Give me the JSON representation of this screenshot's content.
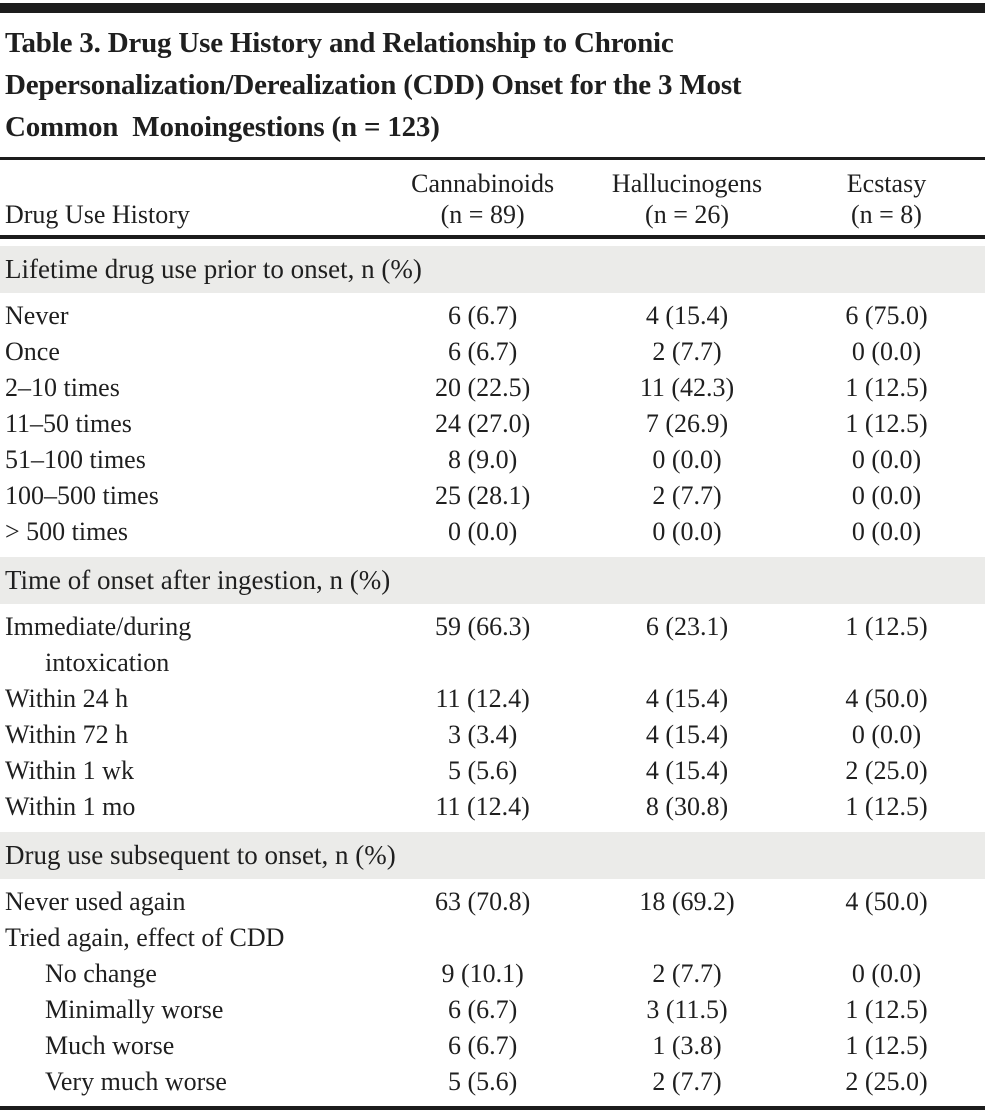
{
  "table": {
    "title_lines": [
      "Table 3. Drug Use History and Relationship to Chronic",
      "Depersonalization/Derealization (CDD) Onset for the 3 Most",
      "Common  Monoingestions (n = 123)"
    ],
    "columns": {
      "label_header": "Drug Use History",
      "groups": [
        {
          "name": "Cannabinoids",
          "n": "(n = 89)"
        },
        {
          "name": "Hallucinogens",
          "n": "(n = 26)"
        },
        {
          "name": "Ecstasy",
          "n": "(n = 8)"
        }
      ]
    },
    "sections": [
      {
        "header": "Lifetime drug use prior to onset, n (%)",
        "rows": [
          {
            "label": "Never",
            "values": [
              "6 (6.7)",
              "4 (15.4)",
              "6 (75.0)"
            ]
          },
          {
            "label": "Once",
            "values": [
              "6 (6.7)",
              "2 (7.7)",
              "0 (0.0)"
            ]
          },
          {
            "label": "2–10 times",
            "values": [
              "20 (22.5)",
              "11 (42.3)",
              "1 (12.5)"
            ]
          },
          {
            "label": "11–50 times",
            "values": [
              "24 (27.0)",
              "7 (26.9)",
              "1 (12.5)"
            ]
          },
          {
            "label": "51–100 times",
            "values": [
              "8 (9.0)",
              "0 (0.0)",
              "0 (0.0)"
            ]
          },
          {
            "label": "100–500 times",
            "values": [
              "25 (28.1)",
              "2 (7.7)",
              "0 (0.0)"
            ]
          },
          {
            "label": "> 500 times",
            "values": [
              "0 (0.0)",
              "0 (0.0)",
              "0 (0.0)"
            ]
          }
        ]
      },
      {
        "header": "Time of onset after ingestion, n (%)",
        "rows": [
          {
            "label": "Immediate/during",
            "label2": "intoxication",
            "values": [
              "59 (66.3)",
              "6 (23.1)",
              "1 (12.5)"
            ]
          },
          {
            "label": "Within 24 h",
            "values": [
              "11 (12.4)",
              "4 (15.4)",
              "4 (50.0)"
            ]
          },
          {
            "label": "Within 72 h",
            "values": [
              "3 (3.4)",
              "4 (15.4)",
              "0 (0.0)"
            ]
          },
          {
            "label": "Within 1 wk",
            "values": [
              "5 (5.6)",
              "4 (15.4)",
              "2 (25.0)"
            ]
          },
          {
            "label": "Within 1 mo",
            "values": [
              "11 (12.4)",
              "8 (30.8)",
              "1 (12.5)"
            ]
          }
        ]
      },
      {
        "header": "Drug use subsequent to onset, n (%)",
        "rows": [
          {
            "label": "Never used again",
            "values": [
              "63 (70.8)",
              "18 (69.2)",
              "4 (50.0)"
            ]
          },
          {
            "label": "Tried again, effect of CDD",
            "values": [
              "",
              "",
              ""
            ]
          },
          {
            "label": "No change",
            "values": [
              "9 (10.1)",
              "2 (7.7)",
              "0 (0.0)"
            ]
          },
          {
            "label": "Minimally worse",
            "values": [
              "6 (6.7)",
              "3 (11.5)",
              "1 (12.5)"
            ]
          },
          {
            "label": "Much worse",
            "values": [
              "6 (6.7)",
              "1 (3.8)",
              "1 (12.5)"
            ]
          },
          {
            "label": "Very much worse",
            "values": [
              "5 (5.6)",
              "2 (7.7)",
              "2 (25.0)"
            ]
          }
        ]
      }
    ],
    "colors": {
      "rule": "#1c1c1c",
      "section_band_bg": "#ebebe9",
      "text": "#1f1f1f",
      "background": "#ffffff"
    }
  }
}
